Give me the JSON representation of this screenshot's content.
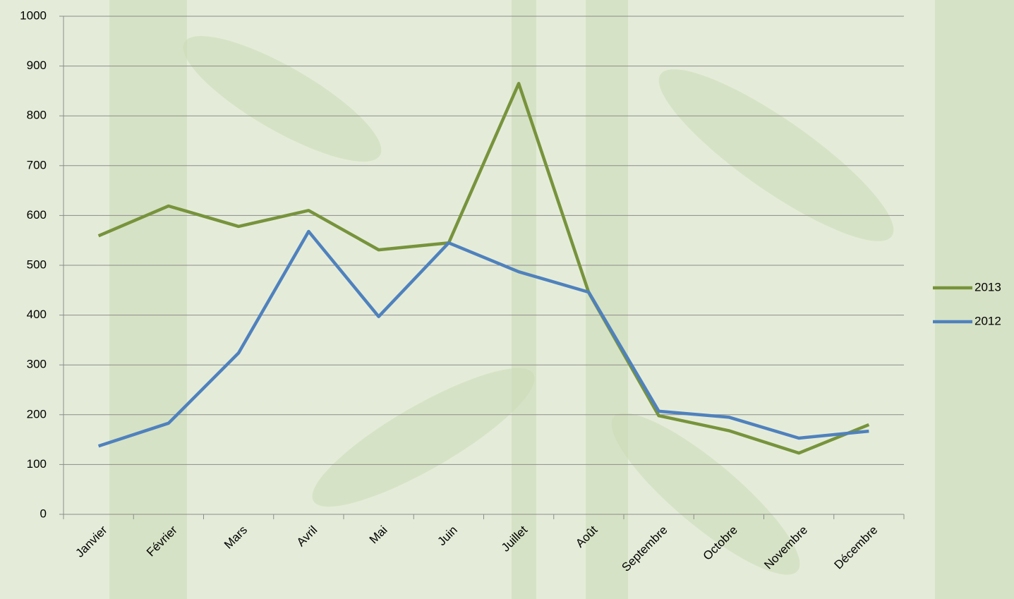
{
  "chart_data": {
    "type": "line",
    "categories": [
      "Janvier",
      "Février",
      "Mars",
      "Avril",
      "Mai",
      "Juin",
      "Juillet",
      "Août",
      "Septembre",
      "Octobre",
      "Novembre",
      "Décembre"
    ],
    "series": [
      {
        "name": "2013",
        "color": "#77933c",
        "values": [
          559,
          619,
          578,
          610,
          531,
          545,
          865,
          445,
          198,
          168,
          123,
          180
        ]
      },
      {
        "name": "2012",
        "color": "#4f81bd",
        "values": [
          137,
          183,
          324,
          568,
          397,
          545,
          487,
          446,
          207,
          195,
          153,
          167
        ]
      }
    ],
    "ylim": [
      0,
      1000
    ],
    "yticks": [
      0,
      100,
      200,
      300,
      400,
      500,
      600,
      700,
      800,
      900,
      1000
    ],
    "grid": true,
    "legend": "right"
  }
}
